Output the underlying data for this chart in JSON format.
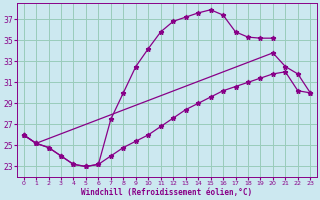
{
  "xlabel": "Windchill (Refroidissement éolien,°C)",
  "bg_color": "#cce8f0",
  "grid_color": "#99ccbb",
  "line_color": "#880088",
  "ylim": [
    22.0,
    38.5
  ],
  "xlim": [
    -0.5,
    23.5
  ],
  "yticks": [
    23,
    25,
    27,
    29,
    31,
    33,
    35,
    37
  ],
  "xticks": [
    0,
    1,
    2,
    3,
    4,
    5,
    6,
    7,
    8,
    9,
    10,
    11,
    12,
    13,
    14,
    15,
    16,
    17,
    18,
    19,
    20,
    21,
    22,
    23
  ],
  "series": [
    {
      "x": [
        0,
        1,
        2,
        3,
        4,
        5,
        6,
        7,
        8,
        9,
        10,
        11,
        12,
        13,
        14,
        15,
        16,
        17,
        18,
        19,
        20
      ],
      "y": [
        26.0,
        25.2,
        24.8,
        24.0,
        23.2,
        23.0,
        23.2,
        27.5,
        30.0,
        32.5,
        34.2,
        35.8,
        36.8,
        37.2,
        37.6,
        37.9,
        37.4,
        35.8,
        35.3,
        35.2,
        35.2
      ]
    },
    {
      "x": [
        0,
        1,
        2,
        3,
        4,
        5,
        6,
        7,
        8,
        9,
        10,
        11,
        12,
        13,
        14,
        15,
        16,
        17,
        18,
        19,
        20,
        21,
        22,
        23
      ],
      "y": [
        26.0,
        25.2,
        24.8,
        24.0,
        23.2,
        23.0,
        23.2,
        24.0,
        24.8,
        25.4,
        26.0,
        26.8,
        27.6,
        28.4,
        29.0,
        29.6,
        30.2,
        30.6,
        31.0,
        31.4,
        31.8,
        32.0,
        30.2,
        30.0
      ]
    },
    {
      "x": [
        0,
        1,
        20,
        21,
        22,
        23
      ],
      "y": [
        26.0,
        25.2,
        33.8,
        32.5,
        31.8,
        30.0
      ]
    }
  ]
}
